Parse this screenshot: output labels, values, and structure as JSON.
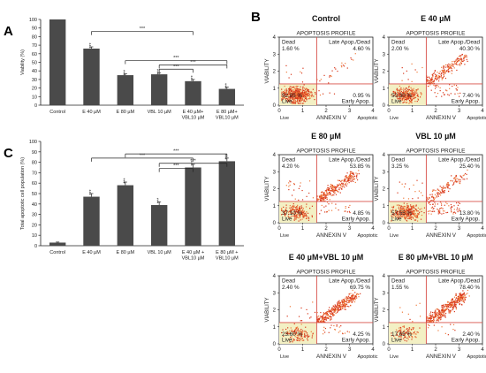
{
  "panel_letters": {
    "a": "A",
    "b": "B",
    "c": "C"
  },
  "chart_data": [
    {
      "id": "A",
      "type": "bar",
      "ylabel": "Viability (%)",
      "ylim": [
        0,
        100
      ],
      "yticks": [
        0,
        10,
        20,
        30,
        40,
        50,
        60,
        70,
        80,
        90,
        100
      ],
      "categories": [
        [
          "Control"
        ],
        [
          "E 40 µM"
        ],
        [
          "E 80 µM"
        ],
        [
          "VBL 10 µM"
        ],
        [
          "E 40 µM+",
          "VBL10 µM"
        ],
        [
          "E 80 µM+",
          "VBL10 µM"
        ]
      ],
      "values": [
        100,
        66,
        35,
        36,
        28,
        19
      ],
      "errors": [
        0,
        2,
        1.5,
        1.5,
        2,
        2
      ],
      "stars": [
        "",
        "***",
        "***",
        "***",
        "***",
        "***"
      ],
      "brackets": [
        {
          "from": 1,
          "to": 4,
          "y": 86,
          "label": "***"
        },
        {
          "from": 2,
          "to": 5,
          "y": 52,
          "label": "***"
        },
        {
          "from": 3,
          "to": 5,
          "y": 47,
          "label": "***"
        },
        {
          "from": 3,
          "to": 4,
          "y": 42,
          "label": "***"
        }
      ]
    },
    {
      "id": "C",
      "type": "bar",
      "ylabel": "Total apoptotic cell population (%)",
      "ylim": [
        0,
        100
      ],
      "yticks": [
        0,
        10,
        20,
        30,
        40,
        50,
        60,
        70,
        80,
        90,
        100
      ],
      "categories": [
        [
          "Control"
        ],
        [
          "E 40 µM"
        ],
        [
          "E 80 µM"
        ],
        [
          "VBL 10 µM"
        ],
        [
          "E 40 µM +",
          "VBL10 µM"
        ],
        [
          "E 80 µM +",
          "VBL10 µM"
        ]
      ],
      "values": [
        3,
        47,
        58,
        39,
        75,
        81
      ],
      "errors": [
        0.5,
        3,
        3,
        3,
        3,
        3
      ],
      "stars": [
        "",
        "***",
        "***",
        "***",
        "***",
        "***"
      ],
      "brackets": [
        {
          "from": 1,
          "to": 4,
          "y": 84,
          "label": "***"
        },
        {
          "from": 2,
          "to": 5,
          "y": 88,
          "label": "***"
        },
        {
          "from": 3,
          "to": 5,
          "y": 79,
          "label": "***"
        },
        {
          "from": 3,
          "to": 4,
          "y": 74,
          "label": "***"
        }
      ]
    },
    {
      "id": "B",
      "type": "scatter",
      "subtitle": "APOPTOSIS PROFILE",
      "xlabel": "ANNEXIN V",
      "ylabel": "VIABILITY",
      "xlim": [
        0,
        4
      ],
      "ylim": [
        0,
        4
      ],
      "xticks": [
        0,
        1,
        2,
        3,
        4
      ],
      "yticks": [
        0,
        1,
        2,
        3,
        4
      ],
      "gate": {
        "x": 1.6,
        "y": 1.25
      },
      "quadrant_names": {
        "dead": "Dead",
        "late": "Late Apop./Dead",
        "live": "Live",
        "early": "Early Apop."
      },
      "axis_corner": {
        "left": "Live",
        "right": "Apoptotic"
      },
      "plots": [
        {
          "title": "Control",
          "dead": "1.60 %",
          "late": "4.60 %",
          "live": "92.85 %",
          "early": "0.95 %"
        },
        {
          "title": "E 40 µM",
          "dead": "2.00 %",
          "late": "40.30 %",
          "live": "50.30 %",
          "early": "7.40 %"
        },
        {
          "title": "E 80 µM",
          "dead": "4.20 %",
          "late": "53.85 %",
          "live": "37.10 %",
          "early": "4.85 %"
        },
        {
          "title": "VBL 10 µM",
          "dead": "3.25 %",
          "late": "25.40 %",
          "live": "57.55 %",
          "early": "13.80 %"
        },
        {
          "title": "E 40 µM+VBL 10 µM",
          "dead": "2.40 %",
          "late": "69.75 %",
          "live": "23.60 %",
          "early": "4.25 %"
        },
        {
          "title": "E 80 µM+VBL 10 µM",
          "dead": "1.55 %",
          "late": "78.40 %",
          "live": "17.65 %",
          "early": "2.40 %"
        }
      ]
    }
  ]
}
